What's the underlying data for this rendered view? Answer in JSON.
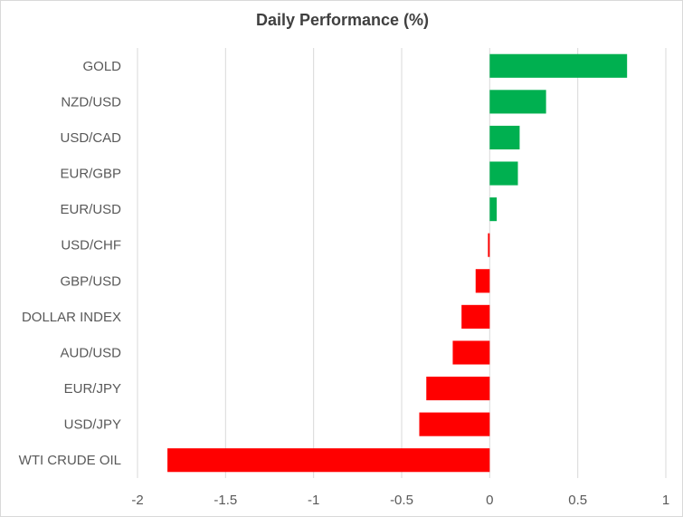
{
  "chart_data": {
    "type": "bar",
    "orientation": "horizontal",
    "title": "Daily Performance (%)",
    "xlabel": "",
    "ylabel": "",
    "categories": [
      "GOLD",
      "NZD/USD",
      "USD/CAD",
      "EUR/GBP",
      "EUR/USD",
      "USD/CHF",
      "GBP/USD",
      "DOLLAR INDEX",
      "AUD/USD",
      "EUR/JPY",
      "USD/JPY",
      "WTI CRUDE OIL"
    ],
    "values": [
      0.78,
      0.32,
      0.17,
      0.16,
      0.04,
      -0.01,
      -0.08,
      -0.16,
      -0.21,
      -0.36,
      -0.4,
      -1.83
    ],
    "xlim": [
      -2,
      1
    ],
    "x_ticks": [
      "-2",
      "-1.5",
      "-1",
      "-0.5",
      "0",
      "0.5",
      "1"
    ],
    "grid": "vertical",
    "legend": "none",
    "colors": {
      "positive": "#00b050",
      "negative": "#ff0000",
      "grid": "#d9d9d9",
      "text": "#595959"
    }
  }
}
